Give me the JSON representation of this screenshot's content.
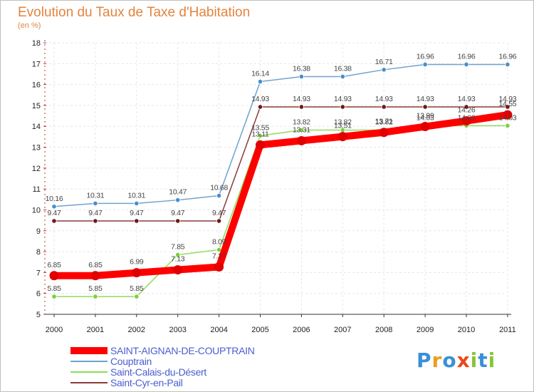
{
  "brand": {
    "name": "Proxiti",
    "letters": [
      {
        "ch": "P",
        "color": "#3a8fd8"
      },
      {
        "ch": "r",
        "color": "#e8a020"
      },
      {
        "ch": "o",
        "color": "#3a8fd8"
      },
      {
        "ch": "x",
        "color": "#e84a1a"
      },
      {
        "ch": "i",
        "color": "#8ac43a"
      },
      {
        "ch": "t",
        "color": "#3a8fd8"
      },
      {
        "ch": "i",
        "color": "#8ac43a"
      }
    ]
  },
  "chart_data": {
    "type": "line",
    "title": "Evolution du Taux de Taxe d'Habitation",
    "subtitle": "(en %)",
    "xlabel": "",
    "ylabel": "",
    "ylim": [
      5,
      18
    ],
    "y_ticks": [
      5,
      6,
      7,
      8,
      9,
      10,
      11,
      12,
      13,
      14,
      15,
      16,
      17,
      18
    ],
    "categories": [
      "2000",
      "2001",
      "2002",
      "2003",
      "2004",
      "2005",
      "2006",
      "2007",
      "2008",
      "2009",
      "2010",
      "2011"
    ],
    "grid": true,
    "legend": "bottom-left",
    "series": [
      {
        "name": "SAINT-AIGNAN-DE-COUPTRAIN",
        "color": "#ff0000",
        "marker": "#e00000",
        "width": "thick",
        "values": [
          6.85,
          6.85,
          6.99,
          7.13,
          7.27,
          13.11,
          13.31,
          13.51,
          13.71,
          13.99,
          14.26,
          14.55
        ],
        "labels": [
          "6.85",
          "6.85",
          "6.99",
          "7.13",
          "7.27",
          "13.11",
          "13.31",
          "13.51",
          "13.71",
          "13.99",
          "14.26",
          "14.55"
        ]
      },
      {
        "name": "Couptrain",
        "color": "#6fa3d0",
        "marker": "#4a8ec8",
        "width": "thin",
        "values": [
          10.16,
          10.31,
          10.31,
          10.47,
          10.68,
          16.14,
          16.38,
          16.38,
          16.71,
          16.96,
          16.96,
          16.96
        ],
        "labels": [
          "10.16",
          "10.31",
          "10.31",
          "10.47",
          "10.68",
          "16.14",
          "16.38",
          "16.38",
          "16.71",
          "16.96",
          "16.96",
          "16.96"
        ]
      },
      {
        "name": "Saint-Calais-du-Désert",
        "color": "#8fdc5a",
        "marker": "#7ccf3a",
        "width": "thin",
        "values": [
          5.85,
          5.85,
          5.85,
          7.85,
          8.09,
          13.55,
          13.82,
          13.82,
          13.82,
          14.03,
          14.03,
          14.03
        ],
        "labels": [
          "5.85",
          "5.85",
          "5.85",
          "7.85",
          "8.09",
          "13.55",
          "13.82",
          "13.82",
          "13.82",
          "14.03",
          "14.03",
          "14.03"
        ]
      },
      {
        "name": "Saint-Cyr-en-Pail",
        "color": "#8b3a3a",
        "marker": "#6b1a1a",
        "width": "thin",
        "values": [
          9.47,
          9.47,
          9.47,
          9.47,
          9.47,
          14.93,
          14.93,
          14.93,
          14.93,
          14.93,
          14.93,
          14.93
        ],
        "labels": [
          "9.47",
          "9.47",
          "9.47",
          "9.47",
          "9.47",
          "14.93",
          "14.93",
          "14.93",
          "14.93",
          "14.93",
          "14.93",
          "14.93"
        ]
      }
    ]
  }
}
